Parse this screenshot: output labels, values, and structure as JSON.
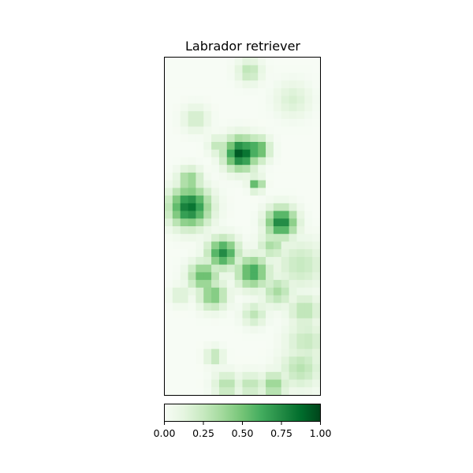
{
  "chart_data": {
    "type": "heatmap",
    "title": "Labrador retriever",
    "xlabel": "",
    "ylabel": "",
    "x_ticks": [],
    "y_ticks": [],
    "colormap": "Greens",
    "colormap_colors": [
      "#f7fcf5",
      "#e5f5e0",
      "#c7e9c0",
      "#a1d99b",
      "#74c476",
      "#41ab5d",
      "#238b45",
      "#006d2c",
      "#00441b"
    ],
    "colorbar": {
      "orientation": "horizontal",
      "range": [
        0.0,
        1.0
      ],
      "ticks": [
        0.0,
        0.25,
        0.5,
        0.75,
        1.0
      ],
      "tick_labels": [
        "0.00",
        "0.25",
        "0.50",
        "0.75",
        "1.00"
      ]
    },
    "grid": {
      "rows": 44,
      "cols": 20,
      "blobs": [
        {
          "row": 1.8,
          "col": 10.9,
          "radius": 1.2,
          "value": 0.3
        },
        {
          "row": 5.5,
          "col": 16.5,
          "radius": 1.8,
          "value": 0.18
        },
        {
          "row": 8.0,
          "col": 4.0,
          "radius": 1.3,
          "value": 0.22
        },
        {
          "row": 12.5,
          "col": 9.8,
          "radius": 1.6,
          "value": 0.95
        },
        {
          "row": 12.0,
          "col": 11.8,
          "radius": 1.2,
          "value": 0.7
        },
        {
          "row": 11.5,
          "col": 7.0,
          "radius": 1.0,
          "value": 0.3
        },
        {
          "row": 16.5,
          "col": 11.8,
          "radius": 0.7,
          "value": 0.6
        },
        {
          "row": 16.0,
          "col": 3.2,
          "radius": 1.2,
          "value": 0.45
        },
        {
          "row": 19.5,
          "col": 3.2,
          "radius": 2.0,
          "value": 0.85
        },
        {
          "row": 21.5,
          "col": 15.0,
          "radius": 1.5,
          "value": 0.8
        },
        {
          "row": 25.5,
          "col": 7.5,
          "radius": 1.5,
          "value": 0.75
        },
        {
          "row": 24.5,
          "col": 13.8,
          "radius": 1.3,
          "value": 0.35
        },
        {
          "row": 27.0,
          "col": 17.5,
          "radius": 2.5,
          "value": 0.25
        },
        {
          "row": 28.5,
          "col": 5.0,
          "radius": 1.5,
          "value": 0.55
        },
        {
          "row": 28.0,
          "col": 11.3,
          "radius": 1.6,
          "value": 0.65
        },
        {
          "row": 31.0,
          "col": 6.2,
          "radius": 1.4,
          "value": 0.5
        },
        {
          "row": 30.5,
          "col": 14.5,
          "radius": 1.5,
          "value": 0.35
        },
        {
          "row": 31.0,
          "col": 2.0,
          "radius": 1.0,
          "value": 0.2
        },
        {
          "row": 33.5,
          "col": 11.5,
          "radius": 1.2,
          "value": 0.28
        },
        {
          "row": 33.0,
          "col": 18.0,
          "radius": 1.6,
          "value": 0.3
        },
        {
          "row": 37.0,
          "col": 18.2,
          "radius": 2.0,
          "value": 0.25
        },
        {
          "row": 39.0,
          "col": 6.4,
          "radius": 0.9,
          "value": 0.3
        },
        {
          "row": 40.5,
          "col": 17.5,
          "radius": 2.0,
          "value": 0.3
        },
        {
          "row": 42.7,
          "col": 14.0,
          "radius": 1.3,
          "value": 0.42
        },
        {
          "row": 42.7,
          "col": 8.0,
          "radius": 1.3,
          "value": 0.32
        },
        {
          "row": 42.7,
          "col": 11.0,
          "radius": 1.2,
          "value": 0.3
        }
      ]
    }
  }
}
